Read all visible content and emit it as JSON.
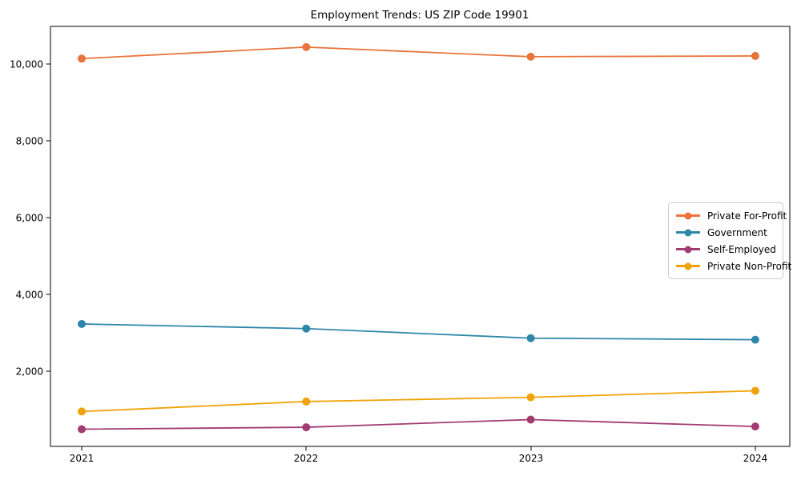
{
  "chart_data": {
    "type": "line",
    "title": "Employment Trends: US ZIP Code 19901",
    "x": [
      2021,
      2022,
      2023,
      2024
    ],
    "xtick_labels": [
      "2021",
      "2022",
      "2023",
      "2024"
    ],
    "yticks": [
      2000,
      4000,
      6000,
      8000,
      10000
    ],
    "ytick_labels": [
      "2,000",
      "4,000",
      "6,000",
      "8,000",
      "10,000"
    ],
    "ylim": [
      -60,
      11000
    ],
    "grid": false,
    "marker": "circle",
    "legend_position": "center right",
    "xlabel": "",
    "ylabel": "",
    "series": [
      {
        "name": "Private For-Profit",
        "color": "#e8743b",
        "values": [
          10140,
          10440,
          10190,
          10210
        ]
      },
      {
        "name": "Government",
        "color": "#2e86ab",
        "values": [
          3230,
          3110,
          2860,
          2820
        ]
      },
      {
        "name": "Self-Employed",
        "color": "#a23b72",
        "values": [
          490,
          540,
          740,
          560
        ]
      },
      {
        "name": "Private Non-Profit",
        "color": "#f1a208",
        "values": [
          950,
          1210,
          1320,
          1490
        ]
      }
    ]
  }
}
